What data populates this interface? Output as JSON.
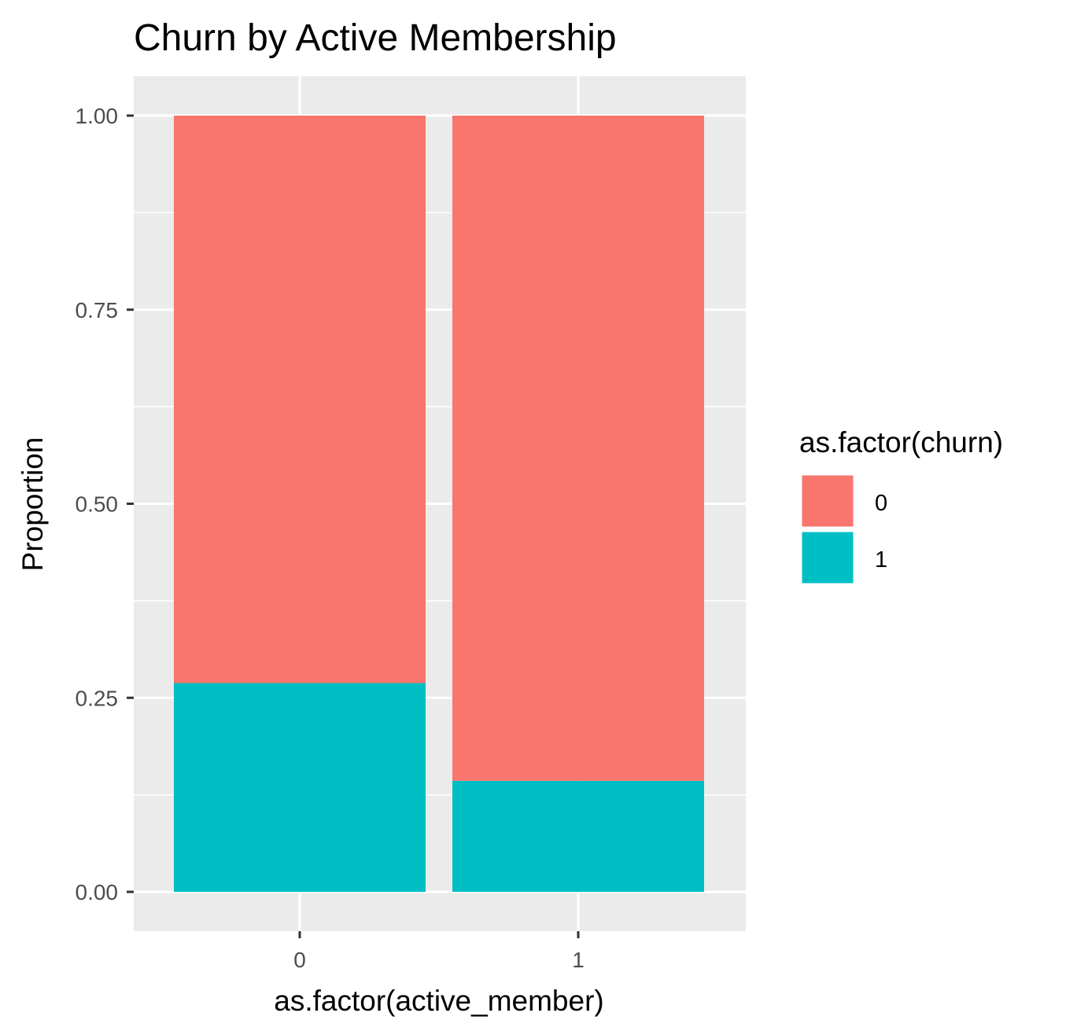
{
  "chart_data": {
    "type": "bar",
    "stacked": true,
    "title": "Churn by Active Membership",
    "xlabel": "as.factor(active_member)",
    "ylabel": "Proportion",
    "categories": [
      "0",
      "1"
    ],
    "ylim": [
      0,
      1
    ],
    "yticks": [
      "0.00",
      "0.25",
      "0.50",
      "0.75",
      "1.00"
    ],
    "legend": {
      "title": "as.factor(churn)",
      "placement": "right"
    },
    "series": [
      {
        "name": "0",
        "color": "#F8766D",
        "values": [
          0.731,
          0.857
        ]
      },
      {
        "name": "1",
        "color": "#00BFC4",
        "values": [
          0.269,
          0.143
        ]
      }
    ],
    "panel_background": "#EBEBEB",
    "grid": true
  }
}
